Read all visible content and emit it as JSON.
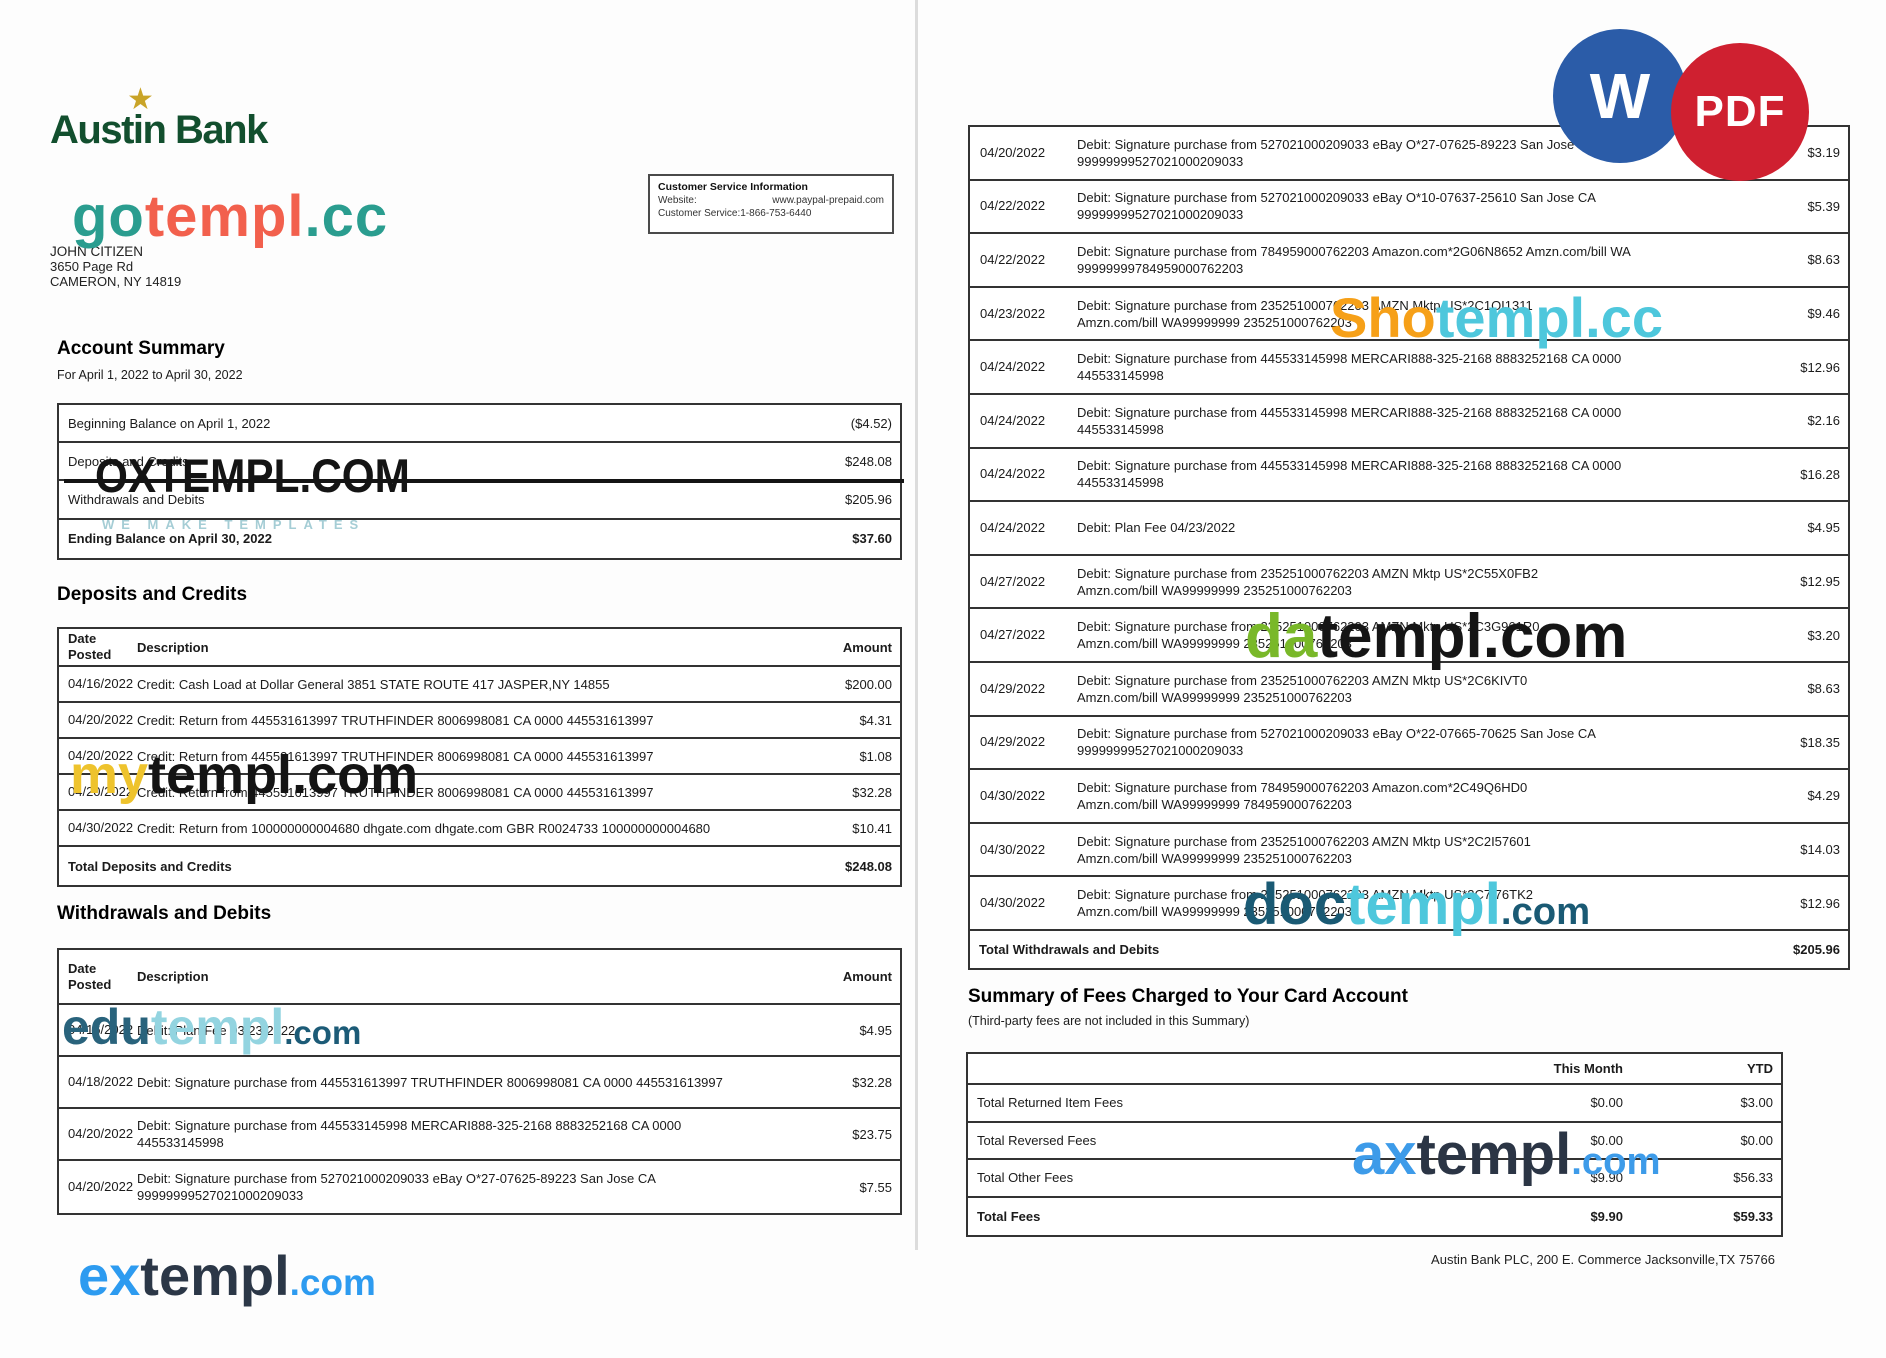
{
  "badges": {
    "word": {
      "label": "W",
      "bg": "#2b5ca8"
    },
    "pdf": {
      "label": "PDF",
      "bg": "#cf2030"
    }
  },
  "watermarks": {
    "gotempl": {
      "parts": [
        {
          "t": "go",
          "c": "#2a9d8f"
        },
        {
          "t": "templ",
          "c": "#f2604d"
        },
        {
          "t": ".cc",
          "c": "#2a9d8f"
        }
      ]
    },
    "oxtempl": {
      "text": "OXTEMPL.COM",
      "color": "#141414",
      "tagline": "WE MAKE TEMPLATES",
      "tagline_color": "#a5cdd5"
    },
    "mytempl": {
      "parts": [
        {
          "t": "my",
          "c": "#eec32d"
        },
        {
          "t": "templ.com",
          "c": "#141414"
        }
      ]
    },
    "edutempl": {
      "parts": [
        {
          "t": "edu",
          "c": "#29637c"
        },
        {
          "t": "templ",
          "c": "#93d4e0"
        },
        {
          "t": ".com",
          "c": "#1c5b77"
        }
      ]
    },
    "extempl": {
      "parts": [
        {
          "t": "ex",
          "c": "#2d9bf0"
        },
        {
          "t": "templ",
          "c": "#2b3747"
        },
        {
          "t": ".com",
          "c": "#2d9bf0"
        }
      ]
    },
    "shotempl": {
      "parts": [
        {
          "t": "Sho",
          "c": "#f6a018"
        },
        {
          "t": "templ",
          "c": "#4ec7dc"
        },
        {
          "t": ".cc",
          "c": "#4ec7dc"
        }
      ]
    },
    "datempl": {
      "parts": [
        {
          "t": "da",
          "c": "#79b829"
        },
        {
          "t": "templ.com",
          "c": "#151515"
        }
      ]
    },
    "doctempl": {
      "parts": [
        {
          "t": "doc",
          "c": "#1a5a74"
        },
        {
          "t": "templ",
          "c": "#4ec7dc"
        },
        {
          "t": ".com",
          "c": "#1a5a74"
        }
      ]
    },
    "axtempl": {
      "parts": [
        {
          "t": "ax",
          "c": "#3d9be9"
        },
        {
          "t": "templ",
          "c": "#2b3545"
        },
        {
          "t": ".com",
          "c": "#3d9be9"
        }
      ]
    }
  },
  "page1": {
    "logo": {
      "name": "Austin Bank",
      "star": "★"
    },
    "recipient": {
      "name": "JOHN CITIZEN",
      "street": "3650 Page Rd",
      "city": "CAMERON, NY 14819"
    },
    "customer_service": {
      "title": "Customer Service Information",
      "website_label": "Website:",
      "website": "www.paypal-prepaid.com",
      "phone": "Customer Service:1-866-753-6440"
    },
    "account_summary": {
      "heading": "Account Summary",
      "period": "For April 1, 2022 to April 30, 2022",
      "rows": [
        {
          "label": "Beginning Balance on April 1, 2022",
          "value": "($4.52)"
        },
        {
          "label": "Deposits and Credits",
          "value": "$248.08"
        },
        {
          "label": "Withdrawals and Debits",
          "value": "$205.96"
        },
        {
          "label": "Ending Balance on April 30, 2022",
          "value": "$37.60",
          "bold": true
        }
      ]
    },
    "deposits": {
      "heading": "Deposits and Credits",
      "headers": {
        "date": "Date Posted",
        "description": "Description",
        "amount": "Amount"
      },
      "rows": [
        {
          "date": "04/16/2022",
          "line1": "Credit: Cash Load at Dollar General 3851 STATE ROUTE 417 JASPER,NY 14855",
          "amount": "$200.00"
        },
        {
          "date": "04/20/2022",
          "line1": "Credit: Return from 445531613997 TRUTHFINDER 8006998081 CA 0000 445531613997",
          "amount": "$4.31"
        },
        {
          "date": "04/20/2022",
          "line1": "Credit: Return from 445531613997 TRUTHFINDER 8006998081 CA 0000 445531613997",
          "amount": "$1.08"
        },
        {
          "date": "04/20/2022",
          "line1": "Credit: Return from 445531613997 TRUTHFINDER 8006998081 CA 0000 445531613997",
          "amount": "$32.28"
        },
        {
          "date": "04/30/2022",
          "line1": "Credit: Return from 100000000004680 dhgate.com dhgate.com GBR R0024733 100000000004680",
          "amount": "$10.41"
        },
        {
          "total": true,
          "line1": "Total Deposits and Credits",
          "amount": "$248.08",
          "bold": true
        }
      ]
    },
    "withdrawals": {
      "heading": "Withdrawals and Debits",
      "headers": {
        "date_line1": "Date",
        "date_line2": "Posted",
        "description": "Description",
        "amount": "Amount"
      },
      "rows": [
        {
          "date": "04/16/2022",
          "line1": "Debit: Plan Fee 03/23/2022",
          "amount": "$4.95"
        },
        {
          "date": "04/18/2022",
          "line1": "Debit: Signature purchase from 445531613997 TRUTHFINDER 8006998081 CA 0000 445531613997",
          "amount": "$32.28"
        },
        {
          "date": "04/20/2022",
          "line1": "Debit: Signature purchase from 445533145998 MERCARI888-325-2168 8883252168 CA 0000",
          "line2": "445533145998",
          "amount": "$23.75"
        },
        {
          "date": "04/20/2022",
          "line1": "Debit: Signature purchase from 527021000209033 eBay O*27-07625-89223 San Jose CA",
          "line2": "99999999527021000209033",
          "amount": "$7.55"
        }
      ]
    }
  },
  "page2": {
    "transactions": [
      {
        "date": "04/20/2022",
        "line1": "Debit: Signature purchase from 527021000209033 eBay O*27-07625-89223 San Jose CA",
        "line2": "99999999527021000209033",
        "amount": "$3.19"
      },
      {
        "date": "04/22/2022",
        "line1": "Debit: Signature purchase from 527021000209033 eBay O*10-07637-25610 San Jose CA",
        "line2": "99999999527021000209033",
        "amount": "$5.39"
      },
      {
        "date": "04/22/2022",
        "line1": "Debit: Signature purchase from 784959000762203 Amazon.com*2G06N8652 Amzn.com/bill WA",
        "line2": "99999999784959000762203",
        "amount": "$8.63"
      },
      {
        "date": "04/23/2022",
        "line1": "Debit: Signature purchase from 235251000762203 AMZN Mktp US*2C1OI1311",
        "line2": "Amzn.com/bill WA99999999 235251000762203",
        "amount": "$9.46"
      },
      {
        "date": "04/24/2022",
        "line1": "Debit: Signature purchase from 445533145998 MERCARI888-325-2168 8883252168 CA 0000",
        "line2": "445533145998",
        "amount": "$12.96"
      },
      {
        "date": "04/24/2022",
        "line1": "Debit: Signature purchase from 445533145998 MERCARI888-325-2168 8883252168 CA 0000",
        "line2": "445533145998",
        "amount": "$2.16"
      },
      {
        "date": "04/24/2022",
        "line1": "Debit: Signature purchase from 445533145998 MERCARI888-325-2168 8883252168 CA 0000",
        "line2": "445533145998",
        "amount": "$16.28"
      },
      {
        "date": "04/24/2022",
        "line1": "Debit: Plan Fee 04/23/2022",
        "amount": "$4.95"
      },
      {
        "date": "04/27/2022",
        "line1": "Debit: Signature purchase from 235251000762203 AMZN Mktp US*2C55X0FB2",
        "line2": "Amzn.com/bill WA99999999 235251000762203",
        "amount": "$12.95"
      },
      {
        "date": "04/27/2022",
        "line1": "Debit: Signature purchase from 235251000762203 AMZN Mktp US*2C3G961R0",
        "line2": "Amzn.com/bill WA99999999 235251000762203",
        "amount": "$3.20"
      },
      {
        "date": "04/29/2022",
        "line1": "Debit: Signature purchase from 235251000762203 AMZN Mktp US*2C6KIVT0",
        "line2": "Amzn.com/bill WA99999999 235251000762203",
        "amount": "$8.63"
      },
      {
        "date": "04/29/2022",
        "line1": "Debit: Signature purchase from 527021000209033 eBay O*22-07665-70625 San Jose CA",
        "line2": "99999999527021000209033",
        "amount": "$18.35"
      },
      {
        "date": "04/30/2022",
        "line1": "Debit: Signature purchase from 784959000762203 Amazon.com*2C49Q6HD0",
        "line2": "Amzn.com/bill WA99999999 784959000762203",
        "amount": "$4.29"
      },
      {
        "date": "04/30/2022",
        "line1": "Debit: Signature purchase from 235251000762203 AMZN Mktp US*2C2I57601",
        "line2": "Amzn.com/bill WA99999999 235251000762203",
        "amount": "$14.03"
      },
      {
        "date": "04/30/2022",
        "line1": "Debit: Signature purchase from 235251000762203 AMZN Mktp US*2C7I76TK2",
        "line2": "Amzn.com/bill WA99999999 235251000762203",
        "amount": "$12.96"
      },
      {
        "total": true,
        "line1": "Total Withdrawals and Debits",
        "amount": "$205.96",
        "bold": true
      }
    ],
    "fees": {
      "heading": "Summary of Fees Charged to Your Card Account",
      "subtitle": "(Third-party fees are not included in this Summary)",
      "headers": {
        "month": "This Month",
        "ytd": "YTD"
      },
      "rows": [
        {
          "label": "Total Returned Item Fees",
          "month": "$0.00",
          "ytd": "$3.00"
        },
        {
          "label": "Total Reversed Fees",
          "month": "$0.00",
          "ytd": "$0.00"
        },
        {
          "label": "Total Other Fees",
          "month": "$9.90",
          "ytd": "$56.33"
        },
        {
          "label": "Total Fees",
          "month": "$9.90",
          "ytd": "$59.33",
          "bold": true
        }
      ]
    },
    "footer": "Austin Bank PLC, 200 E. Commerce Jacksonville,TX 75766"
  }
}
